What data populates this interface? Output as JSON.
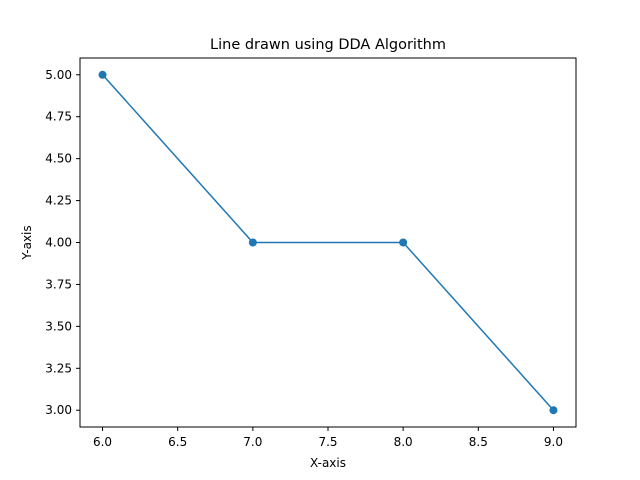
{
  "chart_data": {
    "type": "line",
    "title": "Line drawn using DDA Algorithm",
    "xlabel": "X-axis",
    "ylabel": "Y-axis",
    "x": [
      6,
      7,
      8,
      9
    ],
    "y": [
      5,
      4,
      4,
      3
    ],
    "xlim": [
      5.85,
      9.15
    ],
    "ylim": [
      2.9,
      5.1
    ],
    "x_ticks": [
      6.0,
      6.5,
      7.0,
      7.5,
      8.0,
      8.5,
      9.0
    ],
    "x_tick_labels": [
      "6.0",
      "6.5",
      "7.0",
      "7.5",
      "8.0",
      "8.5",
      "9.0"
    ],
    "y_ticks": [
      3.0,
      3.25,
      3.5,
      3.75,
      4.0,
      4.25,
      4.5,
      4.75,
      5.0
    ],
    "y_tick_labels": [
      "3.00",
      "3.25",
      "3.50",
      "3.75",
      "4.00",
      "4.25",
      "4.50",
      "4.75",
      "5.00"
    ],
    "marker": "circle",
    "grid": false,
    "color": "#1f77b4"
  }
}
